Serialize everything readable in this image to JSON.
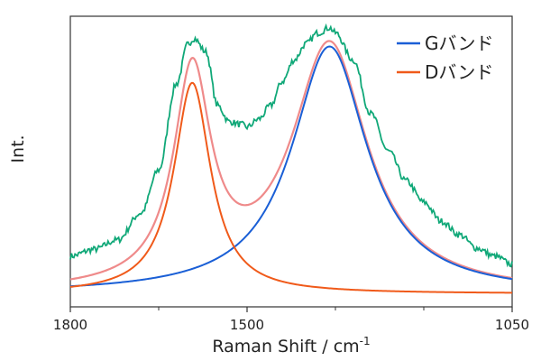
{
  "chart_data": {
    "type": "line",
    "xlabel": "Raman Shift / cm",
    "xlabel_superscript": "-1",
    "ylabel": "Int.",
    "xlim": [
      1800,
      1050
    ],
    "x_reversed": true,
    "ylim": [
      0,
      1
    ],
    "y_ticks_labeled": false,
    "grid": false,
    "legend_position": "top-right",
    "x_ticks": [
      {
        "value": 1800,
        "label": "1800"
      },
      {
        "value": 1500,
        "label": "1500"
      },
      {
        "value": 1050,
        "label": "1050"
      }
    ],
    "x_minor_ticks": [
      1650,
      1350,
      1200
    ],
    "legend": [
      {
        "label": "Gバンド",
        "color": "#1a5fd6"
      },
      {
        "label": "Dバンド",
        "color": "#f05a1a"
      }
    ],
    "series": [
      {
        "name": "Gバンド",
        "role": "fit-component",
        "shape": "lorentzian",
        "center": 1360,
        "hwhm": 78,
        "amplitude": 0.92,
        "color": "#1a5fd6"
      },
      {
        "name": "Dバンド",
        "role": "fit-component",
        "shape": "lorentzian",
        "center": 1593,
        "hwhm": 38,
        "amplitude": 0.785,
        "color": "#f05a1a"
      },
      {
        "role": "fit-sum",
        "color": "#ef8a8a"
      },
      {
        "role": "measured-spectrum",
        "color": "#10a878",
        "noise_amplitude": 0.012,
        "x": [
          1800,
          1760,
          1720,
          1680,
          1650,
          1620,
          1600,
          1590,
          1570,
          1550,
          1530,
          1510,
          1500,
          1480,
          1460,
          1440,
          1420,
          1400,
          1380,
          1360,
          1350,
          1320,
          1290,
          1260,
          1230,
          1200,
          1170,
          1140,
          1110,
          1080,
          1050
        ],
        "y": [
          0.14,
          0.165,
          0.2,
          0.3,
          0.46,
          0.78,
          0.93,
          0.95,
          0.9,
          0.7,
          0.64,
          0.63,
          0.62,
          0.65,
          0.7,
          0.79,
          0.87,
          0.93,
          0.97,
          0.99,
          0.97,
          0.87,
          0.67,
          0.53,
          0.42,
          0.34,
          0.27,
          0.22,
          0.17,
          0.14,
          0.11
        ]
      }
    ]
  }
}
